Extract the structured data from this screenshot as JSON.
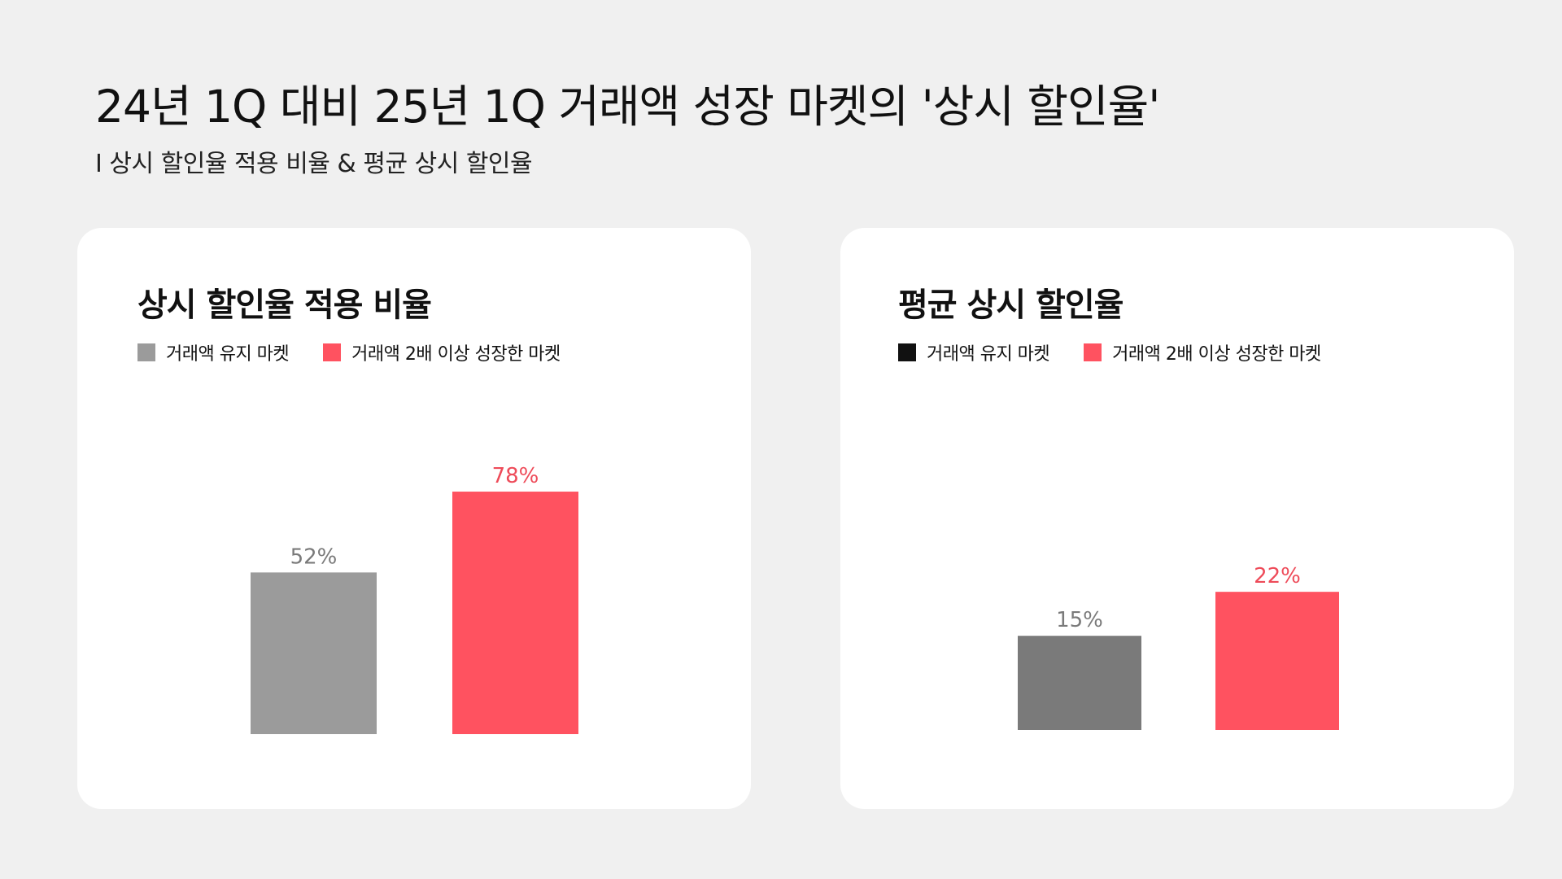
{
  "title": "24년 1Q 대비 25년 1Q 거래액 성장 마켓의 '상시 할인율'",
  "subtitle": "I 상시 할인율 적용 비율 & 평균 상시 할인율",
  "chart_data": [
    {
      "type": "bar",
      "title": "상시 할인율 적용 비율",
      "categories": [
        "거래액 유지 마켓",
        "거래액 2배 이상 성장한 마켓"
      ],
      "values": [
        52,
        78
      ],
      "data_labels": [
        "52%",
        "78%"
      ],
      "unit": "%",
      "ylim": [
        0,
        100
      ],
      "legend": [
        "거래액 유지 마켓",
        "거래액 2배 이상 성장한 마켓"
      ],
      "legend_position": "top-left",
      "colors": [
        "#9b9b9b",
        "#ff5260"
      ],
      "legend_colors": [
        "#9b9b9b",
        "#ff5260"
      ],
      "label_colors": [
        "#7a7a7a",
        "#ee4b59"
      ],
      "grid": false
    },
    {
      "type": "bar",
      "title": "평균 상시 할인율",
      "categories": [
        "거래액 유지 마켓",
        "거래액 2배 이상 성장한 마켓"
      ],
      "values": [
        15,
        22
      ],
      "data_labels": [
        "15%",
        "22%"
      ],
      "unit": "%",
      "ylim": [
        0,
        50
      ],
      "legend": [
        "거래액 유지 마켓",
        "거래액 2배 이상 성장한 마켓"
      ],
      "legend_position": "top-left",
      "colors": [
        "#7a7a7a",
        "#ff5260"
      ],
      "legend_colors": [
        "#111111",
        "#ff5260"
      ],
      "label_colors": [
        "#7a7a7a",
        "#ee4b59"
      ],
      "grid": false
    }
  ]
}
